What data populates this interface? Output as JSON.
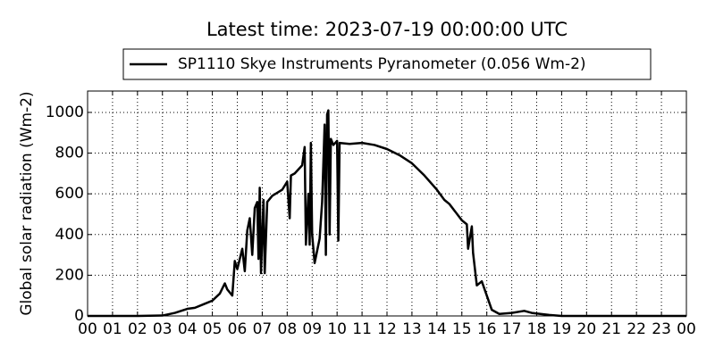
{
  "chart_data": {
    "type": "line",
    "title": "Latest time: 2023-07-19 00:00:00 UTC",
    "y_label": "Global solar radiation (Wm-2)",
    "x": [
      0,
      2,
      3,
      3.5,
      4,
      4.3,
      4.7,
      5,
      5.3,
      5.5,
      5.6,
      5.8,
      5.9,
      6.0,
      6.2,
      6.3,
      6.4,
      6.5,
      6.6,
      6.7,
      6.8,
      6.85,
      6.9,
      6.95,
      7.05,
      7.1,
      7.2,
      7.4,
      7.8,
      8.0,
      8.1,
      8.15,
      8.3,
      8.6,
      8.7,
      8.75,
      8.85,
      8.9,
      8.95,
      9.0,
      9.1,
      9.3,
      9.4,
      9.5,
      9.55,
      9.6,
      9.65,
      9.7,
      9.75,
      9.85,
      10.0,
      10.05,
      10.1,
      10.5,
      11.0,
      11.5,
      12,
      12.5,
      13,
      13.5,
      14,
      14.3,
      14.5,
      15,
      15.2,
      15.25,
      15.4,
      15.45,
      15.6,
      15.8,
      16.0,
      16.2,
      16.5,
      17,
      17.5,
      17.8,
      18.5,
      19,
      24
    ],
    "series": [
      {
        "name": "SP1110 Skye Instruments Pyranometer (0.056 Wm-2)",
        "color": "#000000",
        "values": [
          0,
          0,
          2,
          15,
          35,
          40,
          60,
          75,
          110,
          160,
          130,
          100,
          270,
          230,
          330,
          220,
          420,
          480,
          300,
          530,
          560,
          280,
          630,
          210,
          570,
          210,
          560,
          590,
          620,
          660,
          480,
          690,
          700,
          740,
          830,
          350,
          600,
          350,
          850,
          400,
          260,
          380,
          560,
          940,
          300,
          990,
          1010,
          400,
          870,
          840,
          860,
          370,
          850,
          845,
          850,
          840,
          820,
          790,
          750,
          690,
          620,
          570,
          550,
          470,
          450,
          330,
          440,
          310,
          150,
          170,
          100,
          30,
          10,
          15,
          25,
          15,
          5,
          0,
          0
        ]
      }
    ],
    "xlim": [
      0,
      24
    ],
    "xticks": [
      {
        "value": 0,
        "label": "00"
      },
      {
        "value": 1,
        "label": "01"
      },
      {
        "value": 2,
        "label": "02"
      },
      {
        "value": 3,
        "label": "03"
      },
      {
        "value": 4,
        "label": "04"
      },
      {
        "value": 5,
        "label": "05"
      },
      {
        "value": 6,
        "label": "06"
      },
      {
        "value": 7,
        "label": "07"
      },
      {
        "value": 8,
        "label": "08"
      },
      {
        "value": 9,
        "label": "09"
      },
      10,
      11,
      12,
      13,
      14,
      15,
      16,
      17,
      18,
      19,
      20,
      21,
      22,
      23,
      {
        "value": 24,
        "label": "00"
      }
    ],
    "ylim": [
      0,
      1105
    ],
    "yticks": [
      0,
      200,
      400,
      600,
      800,
      1000
    ],
    "grid": true
  }
}
